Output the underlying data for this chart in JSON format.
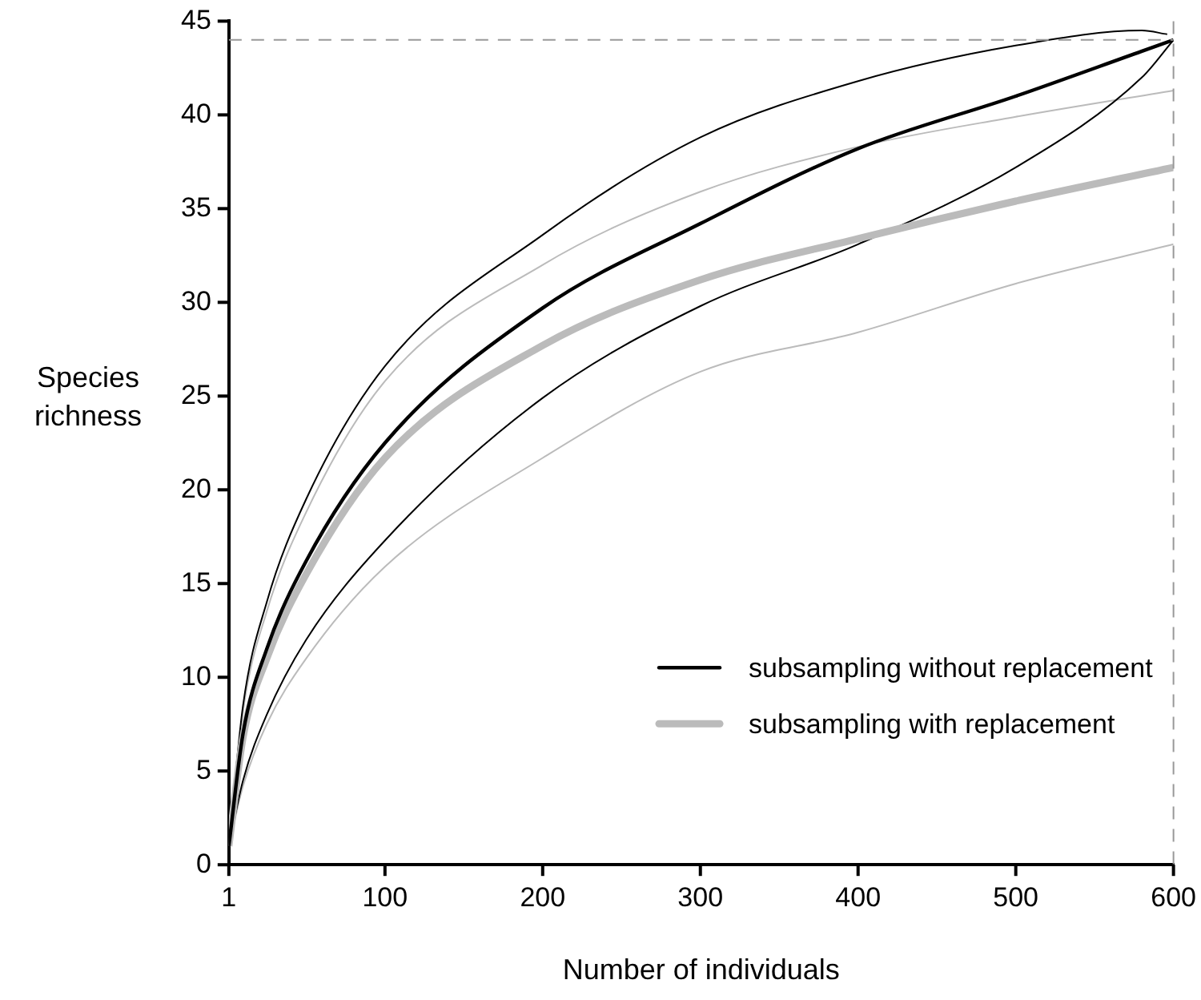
{
  "chart_data": {
    "type": "line",
    "xlabel": "Number of individuals",
    "ylabel": "Species richness",
    "xlim": [
      1,
      600
    ],
    "xticks": [
      1,
      100,
      200,
      300,
      400,
      500,
      600
    ],
    "ylim": [
      0,
      45
    ],
    "yticks": [
      0,
      5,
      10,
      15,
      20,
      25,
      30,
      35,
      40,
      45
    ],
    "grid": false,
    "legend": "bottom right",
    "marker": "none",
    "line_style": "solid",
    "series": [
      {
        "name": "subsampling without replacement",
        "color": "#000000",
        "x": [
          1,
          10,
          25,
          50,
          100,
          200,
          300,
          400,
          500,
          580,
          600
        ],
        "values": [
          1,
          7,
          11.5,
          16.2,
          22.5,
          29.7,
          34.2,
          38.2,
          41,
          43.4,
          44
        ]
      },
      {
        "name": "subsampling with replacement",
        "color": "#bbbbbb",
        "x": [
          1,
          10,
          25,
          50,
          100,
          200,
          300,
          400,
          500,
          600
        ],
        "values": [
          1,
          6.8,
          11,
          15.5,
          21.7,
          27.7,
          31.2,
          33.4,
          35.4,
          37.2
        ]
      },
      {
        "color": "#000000",
        "x": [
          1,
          10,
          25,
          50,
          100,
          200,
          300,
          400,
          500,
          580,
          596
        ],
        "values": [
          1,
          8.5,
          14,
          19.5,
          26.6,
          33.6,
          38.8,
          41.8,
          43.7,
          44.5,
          44.3
        ]
      },
      {
        "color": "#000000",
        "x": [
          1,
          10,
          25,
          50,
          100,
          200,
          300,
          400,
          500,
          580,
          600
        ],
        "values": [
          1,
          4.5,
          8,
          12,
          17.3,
          24.9,
          29.8,
          33.1,
          37.2,
          42,
          44
        ]
      },
      {
        "color": "#bbbbbb",
        "x": [
          1,
          10,
          25,
          50,
          100,
          200,
          300,
          400,
          500,
          600
        ],
        "values": [
          1,
          8.2,
          13.5,
          18.8,
          25.8,
          32,
          35.9,
          38.3,
          39.9,
          41.3
        ]
      },
      {
        "color": "#bbbbbb",
        "x": [
          1,
          10,
          25,
          50,
          100,
          200,
          300,
          400,
          500,
          600
        ],
        "values": [
          1,
          4.2,
          7.5,
          11,
          15.9,
          21.7,
          26.3,
          28.4,
          31,
          33.1
        ]
      }
    ],
    "ref_lines": [
      {
        "axis": "y",
        "value": 44,
        "color": "#999999",
        "line_style": "dashed"
      },
      {
        "axis": "x",
        "value": 600,
        "color": "#999999",
        "line_style": "dashed"
      }
    ]
  }
}
